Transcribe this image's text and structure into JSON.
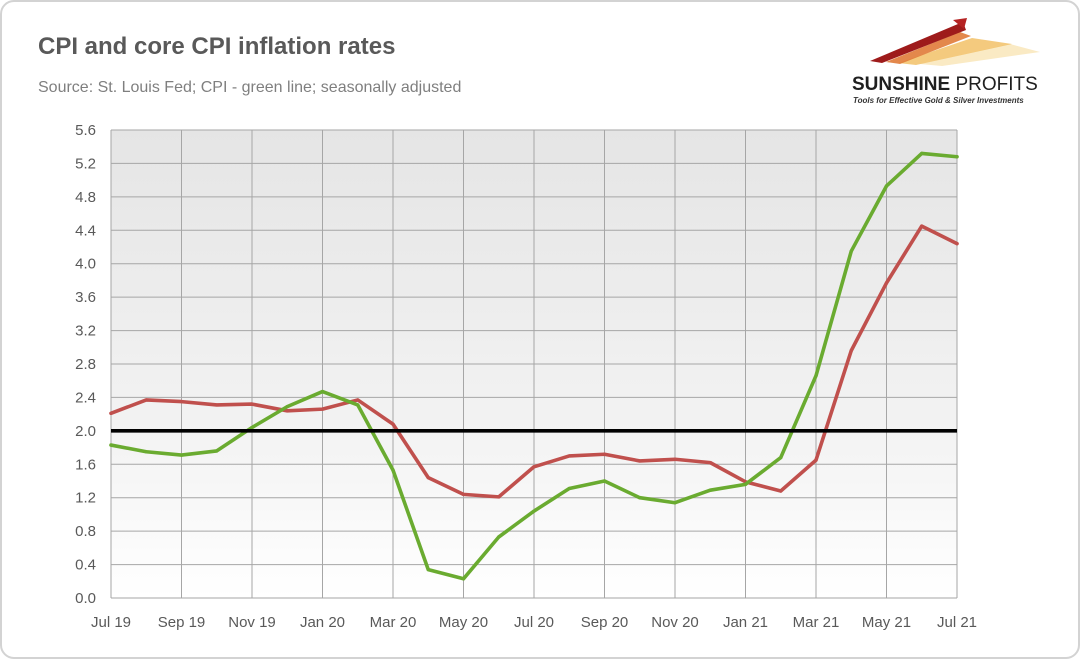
{
  "chart_data": {
    "type": "line",
    "title": "CPI and core CPI inflation rates",
    "subtitle": "Source: St. Louis Fed; CPI - green line; seasonally adjusted",
    "x": [
      "Jul 19",
      "Aug 19",
      "Sep 19",
      "Oct 19",
      "Nov 19",
      "Dec 19",
      "Jan 20",
      "Feb 20",
      "Mar 20",
      "Apr 20",
      "May 20",
      "Jun 20",
      "Jul 20",
      "Aug 20",
      "Sep 20",
      "Oct 20",
      "Nov 20",
      "Dec 20",
      "Jan 21",
      "Feb 21",
      "Mar 21",
      "Apr 21",
      "May 21",
      "Jun 21",
      "Jul 21"
    ],
    "x_ticks": [
      "Jul 19",
      "Sep 19",
      "Nov 19",
      "Jan 20",
      "Mar 20",
      "May 20",
      "Jul 20",
      "Sep 20",
      "Nov 20",
      "Jan 21",
      "Mar 21",
      "May 21",
      "Jul 21"
    ],
    "y_ticks": [
      "0.0",
      "0.4",
      "0.8",
      "1.2",
      "1.6",
      "2.0",
      "2.4",
      "2.8",
      "3.2",
      "3.6",
      "4.0",
      "4.4",
      "4.8",
      "5.2",
      "5.6"
    ],
    "ylim": [
      0,
      5.6
    ],
    "grid": true,
    "series": [
      {
        "color": "#6aab30",
        "values": [
          1.83,
          1.75,
          1.71,
          1.76,
          2.04,
          2.29,
          2.47,
          2.31,
          1.53,
          0.34,
          0.23,
          0.73,
          1.04,
          1.31,
          1.4,
          1.2,
          1.14,
          1.29,
          1.36,
          1.68,
          2.66,
          4.15,
          4.93,
          5.32,
          5.28
        ]
      },
      {
        "color": "#c0504d",
        "values": [
          2.21,
          2.37,
          2.35,
          2.31,
          2.32,
          2.24,
          2.26,
          2.37,
          2.08,
          1.44,
          1.24,
          1.21,
          1.57,
          1.7,
          1.72,
          1.64,
          1.66,
          1.62,
          1.39,
          1.28,
          1.65,
          2.96,
          3.77,
          4.45,
          4.24
        ]
      }
    ],
    "reference_lines": [
      {
        "y": 2.0,
        "color": "#000000"
      }
    ]
  },
  "logo": {
    "brand_bold": "SUNSHINE",
    "brand_light": "PROFITS",
    "tagline": "Tools for Effective Gold & Silver Investments"
  }
}
